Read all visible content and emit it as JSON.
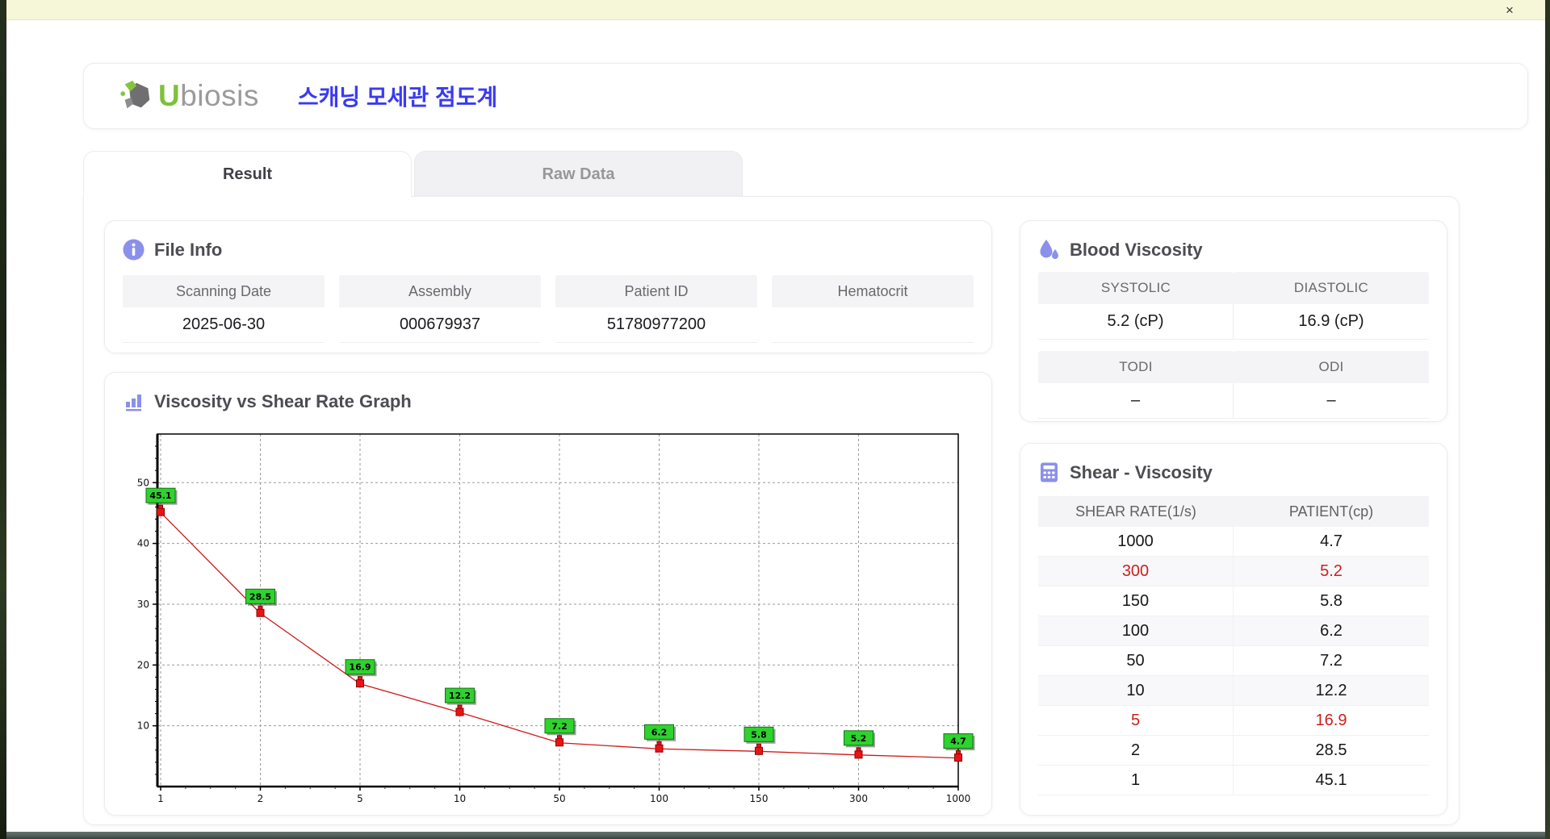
{
  "window": {
    "close_label": "×"
  },
  "header": {
    "logo_prefix": "U",
    "logo_suffix": "biosis",
    "app_title": "스캐닝 모세관 점도계"
  },
  "tabs": [
    {
      "label": "Result",
      "active": true
    },
    {
      "label": "Raw Data",
      "active": false
    }
  ],
  "file_info": {
    "title": "File Info",
    "fields": [
      {
        "label": "Scanning Date",
        "value": "2025-06-30"
      },
      {
        "label": "Assembly",
        "value": "000679937"
      },
      {
        "label": "Patient ID",
        "value": "51780977200"
      },
      {
        "label": "Hematocrit",
        "value": ""
      }
    ]
  },
  "blood_viscosity": {
    "title": "Blood Viscosity",
    "groups": [
      [
        {
          "label": "SYSTOLIC",
          "value": "5.2 (cP)"
        },
        {
          "label": "DIASTOLIC",
          "value": "16.9 (cP)"
        }
      ],
      [
        {
          "label": "TODI",
          "value": "–"
        },
        {
          "label": "ODI",
          "value": "–"
        }
      ]
    ]
  },
  "graph": {
    "title": "Viscosity vs Shear Rate Graph"
  },
  "chart_data": {
    "type": "line",
    "x_categories": [
      "1",
      "2",
      "5",
      "10",
      "50",
      "100",
      "150",
      "300",
      "1000"
    ],
    "values": [
      45.1,
      28.5,
      16.9,
      12.2,
      7.2,
      6.2,
      5.8,
      5.2,
      4.7
    ],
    "point_labels": [
      "45.1",
      "28.5",
      "16.9",
      "12.2",
      "7.2",
      "6.2",
      "5.8",
      "5.2",
      "4.7"
    ],
    "y_ticks": [
      10,
      20,
      30,
      40,
      50
    ],
    "ylim": [
      0,
      58
    ],
    "x_scale": "categorical-even",
    "grid": "dashed",
    "legend": "none",
    "line_color": "#d01818",
    "marker_color": "#e81414",
    "marker_edge": "#8d0606",
    "label_bg": "#2ed32e",
    "label_edge": "#157015"
  },
  "shear_table": {
    "title": "Shear - Viscosity",
    "columns": [
      "SHEAR RATE(1/s)",
      "PATIENT(cp)"
    ],
    "rows": [
      {
        "shear": "1000",
        "patient": "4.7",
        "red": false,
        "shaded": false
      },
      {
        "shear": "300",
        "patient": "5.2",
        "red": true,
        "shaded": true
      },
      {
        "shear": "150",
        "patient": "5.8",
        "red": false,
        "shaded": false
      },
      {
        "shear": "100",
        "patient": "6.2",
        "red": false,
        "shaded": true
      },
      {
        "shear": "50",
        "patient": "7.2",
        "red": false,
        "shaded": false
      },
      {
        "shear": "10",
        "patient": "12.2",
        "red": false,
        "shaded": true
      },
      {
        "shear": "5",
        "patient": "16.9",
        "red": true,
        "shaded": false
      },
      {
        "shear": "2",
        "patient": "28.5",
        "red": false,
        "shaded": false
      },
      {
        "shear": "1",
        "patient": "45.1",
        "red": false,
        "shaded": false
      }
    ]
  },
  "colors": {
    "accent_purple": "#8b90ea",
    "title_blue": "#3a3af2",
    "logo_green": "#7ec13d",
    "logo_gray": "#9b9b9d",
    "highlight_red": "#cc1f1f",
    "notif_yellow": "#f6f6d9"
  }
}
